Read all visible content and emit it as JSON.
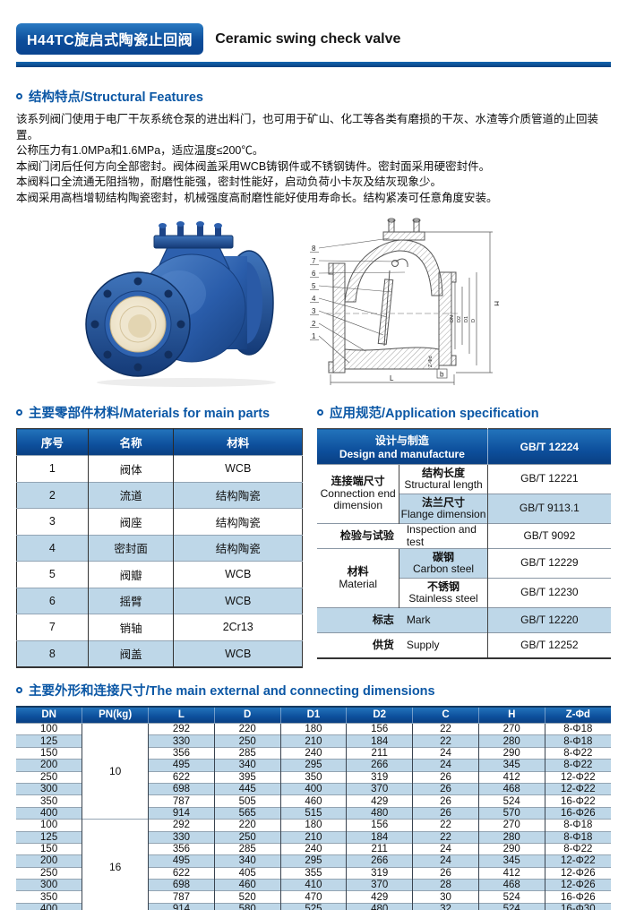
{
  "header": {
    "badge": "H44TC旋启式陶瓷止回阀",
    "title_en": "Ceramic swing check valve"
  },
  "features": {
    "heading": "结构特点/Structural Features",
    "lines": [
      "该系列阀门使用于电厂干灰系统仓泵的进出料门，也可用于矿山、化工等各类有磨损的干灰、水渣等介质管道的止回装置。",
      "公称压力有1.0MPa和1.6MPa，适应温度≤200℃。",
      "本阀门闭后任何方向全部密封。阀体阀盖采用WCB铸钢件或不锈钢铸件。密封面采用硬密封件。",
      "本阀料口全流通无阻挡物，耐磨性能强，密封性能好，启动负荷小卡灰及结灰现象少。",
      "本阀采用高档增韧结构陶瓷密封，机械强度高耐磨性能好使用寿命长。结构紧凑可任意角度安装。"
    ]
  },
  "drawing": {
    "callouts": [
      "8",
      "7",
      "6",
      "5",
      "4",
      "3",
      "2",
      "1"
    ],
    "dim_h": "H",
    "dim_l": "L",
    "dim_b": "b",
    "bolt_label": "Z-Φd",
    "stack": [
      "DN",
      "D2",
      "D1",
      "D"
    ]
  },
  "materials": {
    "heading": "主要零部件材料/Materials for main parts",
    "columns": [
      "序号",
      "名称",
      "材料"
    ],
    "rows": [
      [
        "1",
        "阀体",
        "WCB"
      ],
      [
        "2",
        "流道",
        "结构陶瓷"
      ],
      [
        "3",
        "阀座",
        "结构陶瓷"
      ],
      [
        "4",
        "密封面",
        "结构陶瓷"
      ],
      [
        "5",
        "阀瓣",
        "WCB"
      ],
      [
        "6",
        "摇臂",
        "WCB"
      ],
      [
        "7",
        "销轴",
        "2Cr13"
      ],
      [
        "8",
        "阀盖",
        "WCB"
      ]
    ]
  },
  "application": {
    "heading": "应用规范/Application specification",
    "header": {
      "design_cn": "设计与制造",
      "design_en": "Design and manufacture",
      "std": "GB/T 12224"
    },
    "rows": [
      {
        "group_cn": "连接端尺寸",
        "group_en": "Connection end dimension",
        "item_cn": "结构长度",
        "item_en": "Structural length",
        "std": "GB/T 12221"
      },
      {
        "item_cn": "法兰尺寸",
        "item_en": "Flange dimension",
        "std": "GB/T 9113.1"
      },
      {
        "group_cn": "检验与试验",
        "item_en": "Inspection and test",
        "std": "GB/T 9092"
      },
      {
        "group_cn": "材料",
        "group_en": "Material",
        "item_cn": "碳钢",
        "item_en": "Carbon steel",
        "std": "GB/T 12229"
      },
      {
        "item_cn": "不锈钢",
        "item_en": "Stainless steel",
        "std": "GB/T 12230"
      },
      {
        "group_cn": "标志",
        "item_en": "Mark",
        "std": "GB/T 12220"
      },
      {
        "group_cn": "供货",
        "item_en": "Supply",
        "std": "GB/T 12252"
      }
    ]
  },
  "dimensions": {
    "heading": "主要外形和连接尺寸/The main external and connecting dimensions",
    "columns": [
      "DN",
      "PN(kg)",
      "L",
      "D",
      "D1",
      "D2",
      "C",
      "H",
      "Z-Φd"
    ],
    "groups": [
      {
        "pn": "10",
        "rows": [
          [
            "100",
            "292",
            "220",
            "180",
            "156",
            "22",
            "270",
            "8-Φ18"
          ],
          [
            "125",
            "330",
            "250",
            "210",
            "184",
            "22",
            "280",
            "8-Φ18"
          ],
          [
            "150",
            "356",
            "285",
            "240",
            "211",
            "24",
            "290",
            "8-Φ22"
          ],
          [
            "200",
            "495",
            "340",
            "295",
            "266",
            "24",
            "345",
            "8-Φ22"
          ],
          [
            "250",
            "622",
            "395",
            "350",
            "319",
            "26",
            "412",
            "12-Φ22"
          ],
          [
            "300",
            "698",
            "445",
            "400",
            "370",
            "26",
            "468",
            "12-Φ22"
          ],
          [
            "350",
            "787",
            "505",
            "460",
            "429",
            "26",
            "524",
            "16-Φ22"
          ],
          [
            "400",
            "914",
            "565",
            "515",
            "480",
            "26",
            "570",
            "16-Φ26"
          ]
        ]
      },
      {
        "pn": "16",
        "rows": [
          [
            "100",
            "292",
            "220",
            "180",
            "156",
            "22",
            "270",
            "8-Φ18"
          ],
          [
            "125",
            "330",
            "250",
            "210",
            "184",
            "22",
            "280",
            "8-Φ18"
          ],
          [
            "150",
            "356",
            "285",
            "240",
            "211",
            "24",
            "290",
            "8-Φ22"
          ],
          [
            "200",
            "495",
            "340",
            "295",
            "266",
            "24",
            "345",
            "12-Φ22"
          ],
          [
            "250",
            "622",
            "405",
            "355",
            "319",
            "26",
            "412",
            "12-Φ26"
          ],
          [
            "300",
            "698",
            "460",
            "410",
            "370",
            "28",
            "468",
            "12-Φ26"
          ],
          [
            "350",
            "787",
            "520",
            "470",
            "429",
            "30",
            "524",
            "16-Φ26"
          ],
          [
            "400",
            "914",
            "580",
            "525",
            "480",
            "32",
            "524",
            "16-Φ30"
          ]
        ]
      }
    ]
  },
  "colors": {
    "accent_blue": "#0b57a5",
    "header_gradient_top": "#2273bb",
    "header_gradient_bottom": "#093f82",
    "row_stripe": "#bed7e8",
    "valve_body_blue": "#2a5dab",
    "ceramic_liner": "#efe6cf"
  }
}
